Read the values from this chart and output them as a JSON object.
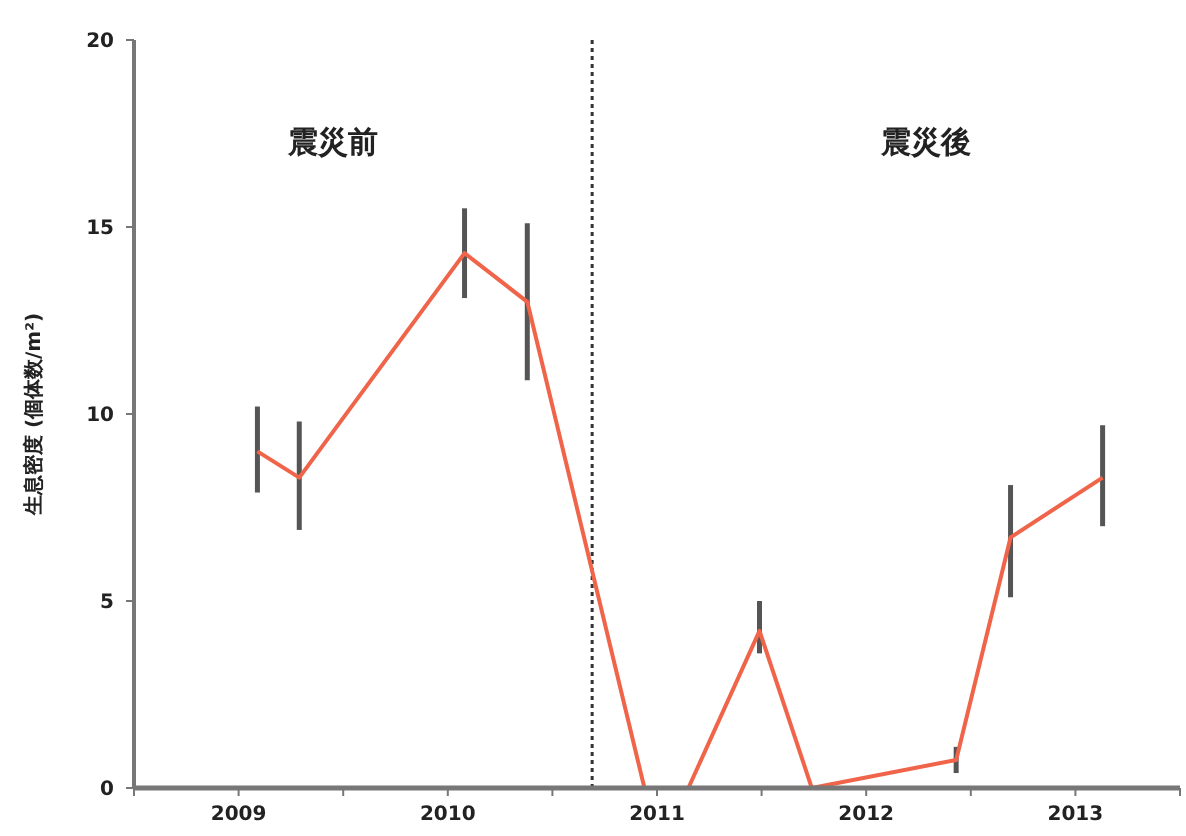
{
  "chart_data": {
    "type": "line",
    "ylabel": "生息密度 (個体数/m²)",
    "x": [
      2009.09,
      2009.29,
      2010.08,
      2010.38,
      2010.94,
      2011.15,
      2011.49,
      2011.74,
      2012.43,
      2012.69,
      2013.13
    ],
    "series": [
      {
        "color": "#f0644a",
        "values": [
          9.0,
          8.3,
          14.3,
          13.0,
          0,
          0,
          4.2,
          0,
          0.75,
          6.7,
          8.3
        ],
        "errors": [
          [
            7.9,
            10.2
          ],
          [
            6.9,
            9.8
          ],
          [
            13.1,
            15.5
          ],
          [
            10.9,
            15.1
          ],
          null,
          null,
          [
            3.6,
            5.0
          ],
          null,
          [
            0.4,
            1.1
          ],
          [
            5.1,
            8.1
          ],
          [
            7.0,
            9.7
          ]
        ]
      }
    ],
    "xlim": [
      2008.5,
      2013.5
    ],
    "xticks": [
      {
        "value": 2008.5,
        "label": null
      },
      {
        "value": 2009,
        "label": "2009"
      },
      {
        "value": 2009.5,
        "label": null
      },
      {
        "value": 2010,
        "label": "2010"
      },
      {
        "value": 2010.5,
        "label": null
      },
      {
        "value": 2011,
        "label": "2011"
      },
      {
        "value": 2011.5,
        "label": null
      },
      {
        "value": 2012,
        "label": "2012"
      },
      {
        "value": 2012.5,
        "label": null
      },
      {
        "value": 2013,
        "label": "2013"
      },
      {
        "value": 2013.5,
        "label": null
      }
    ],
    "ylim": [
      0,
      20
    ],
    "yticks": [
      0,
      5,
      10,
      15,
      20
    ],
    "ref_lines": [
      {
        "axis": "x",
        "value": 2010.69,
        "color": "#333333",
        "line_style": "dotted"
      }
    ],
    "annotations": [
      "震災前",
      "震災後"
    ],
    "grid": false,
    "marker": "none",
    "line_style": "solid"
  }
}
